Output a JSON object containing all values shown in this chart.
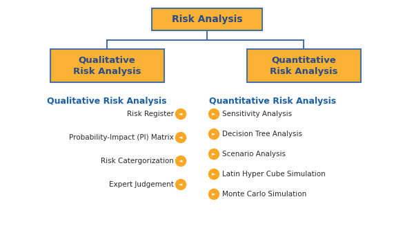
{
  "bg_color": "#ffffff",
  "box_fill": "#f9b233",
  "box_edge": "#4a6fa5",
  "box_text_color": "#2a4a8a",
  "root_label": "Risk Analysis",
  "left_label": "Qualitative\nRisk Analysis",
  "right_label": "Quantitative\nRisk Analysis",
  "left_section_title": "Qualitative Risk Analysis",
  "right_section_title": "Quantitative Risk Analysis",
  "section_title_color": "#1a5fa8",
  "item_text_color": "#2a2a2a",
  "arrow_color": "#f9a825",
  "connector_color": "#4a6fa5",
  "left_items": [
    "Risk Register",
    "Probability-Impact (PI) Matrix",
    "Risk Catergorization",
    "Expert Judgement"
  ],
  "right_items": [
    "Sensitivity Analysis",
    "Decision Tree Analysis",
    "Scenario Analysis",
    "Latin Hyper Cube Simulation",
    "Monte Carlo Simulation"
  ]
}
